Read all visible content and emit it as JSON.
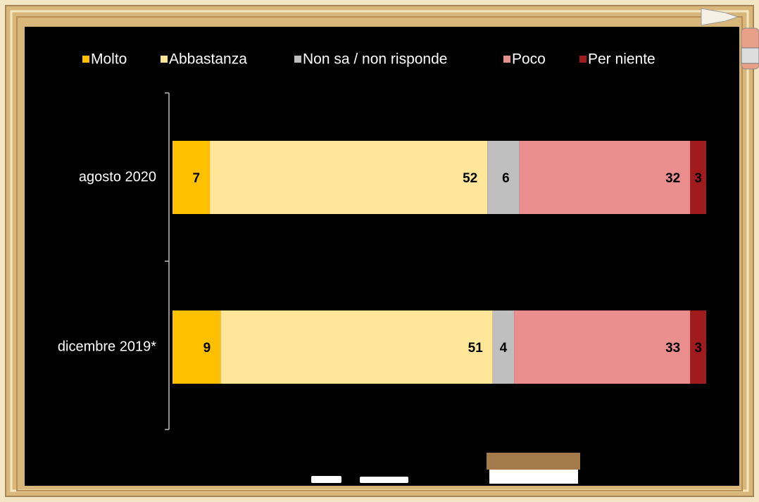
{
  "chart_data": {
    "type": "stacked-bar-horizontal",
    "categories": [
      "agosto 2020",
      "dicembre 2019*"
    ],
    "series": [
      {
        "name": "Molto",
        "color": "#FFC000",
        "values": [
          7,
          9
        ]
      },
      {
        "name": "Abbastanza",
        "color": "#FFE699",
        "values": [
          52,
          51
        ]
      },
      {
        "name": "Non sa / non risponde",
        "color": "#BFBFBF",
        "values": [
          6,
          4
        ]
      },
      {
        "name": "Poco",
        "color": "#EA8E8E",
        "values": [
          32,
          33
        ]
      },
      {
        "name": "Per niente",
        "color": "#A01C1C",
        "values": [
          3,
          3
        ]
      }
    ],
    "xlim": [
      0,
      100
    ],
    "legend": "top"
  }
}
